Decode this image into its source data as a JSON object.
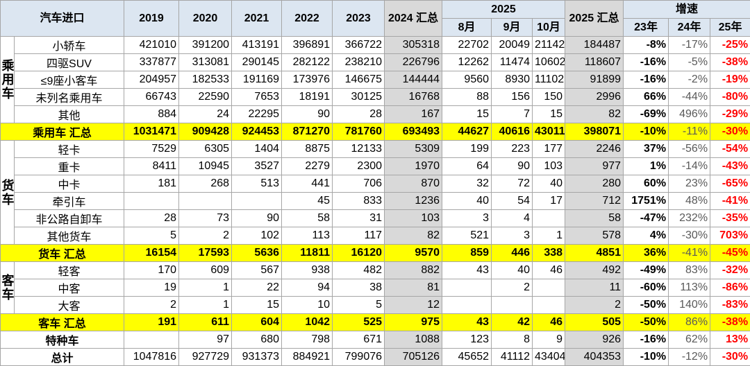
{
  "header": {
    "title": "汽车进口",
    "years": [
      "2019",
      "2020",
      "2021",
      "2022",
      "2023"
    ],
    "total_2024": "2024 汇总",
    "year_2025": "2025",
    "months": [
      "8月",
      "9月",
      "10月"
    ],
    "total_2025": "2025 汇总",
    "growth": "增速",
    "growth_cols": [
      "23年",
      "24年",
      "25年"
    ]
  },
  "sections": [
    {
      "group": "乘用车",
      "rows": [
        {
          "label": "小轿车",
          "values": [
            421010,
            391200,
            413191,
            396891,
            366722,
            305318,
            22702,
            20049,
            21142,
            184487
          ],
          "growth": [
            "-8%",
            "-17%",
            "-25%"
          ]
        },
        {
          "label": "四驱SUV",
          "values": [
            337877,
            313081,
            290145,
            282122,
            238210,
            226796,
            12262,
            11474,
            10602,
            118607
          ],
          "growth": [
            "-16%",
            "-5%",
            "-38%"
          ]
        },
        {
          "label": "≤9座小客车",
          "values": [
            204957,
            182533,
            191169,
            173976,
            146675,
            144444,
            9560,
            8930,
            11102,
            91899
          ],
          "growth": [
            "-16%",
            "-2%",
            "-19%"
          ]
        },
        {
          "label": "未列名乘用车",
          "values": [
            66743,
            22590,
            7653,
            18191,
            30125,
            16768,
            88,
            156,
            150,
            2996
          ],
          "growth": [
            "66%",
            "-44%",
            "-80%"
          ]
        },
        {
          "label": "其他",
          "values": [
            884,
            24,
            22295,
            90,
            28,
            167,
            15,
            7,
            15,
            82
          ],
          "growth": [
            "-69%",
            "496%",
            "-29%"
          ]
        }
      ],
      "total": {
        "label": "乘用车 汇总",
        "values": [
          1031471,
          909428,
          924453,
          871270,
          781760,
          693493,
          44627,
          40616,
          43011,
          398071
        ],
        "growth": [
          "-10%",
          "-11%",
          "-30%"
        ]
      }
    },
    {
      "group": "货车",
      "rows": [
        {
          "label": "轻卡",
          "values": [
            7529,
            6305,
            1404,
            8875,
            12133,
            5309,
            199,
            223,
            177,
            2246
          ],
          "growth": [
            "37%",
            "-56%",
            "-54%"
          ]
        },
        {
          "label": "重卡",
          "values": [
            8411,
            10945,
            3527,
            2279,
            2300,
            1970,
            64,
            90,
            103,
            977
          ],
          "growth": [
            "1%",
            "-14%",
            "-43%"
          ]
        },
        {
          "label": "中卡",
          "values": [
            181,
            268,
            513,
            441,
            706,
            870,
            32,
            72,
            40,
            280
          ],
          "growth": [
            "60%",
            "23%",
            "-65%"
          ]
        },
        {
          "label": "牵引车",
          "values": [
            null,
            null,
            null,
            45,
            833,
            1236,
            40,
            54,
            17,
            712
          ],
          "growth": [
            "1751%",
            "48%",
            "-41%"
          ]
        },
        {
          "label": "非公路自卸车",
          "values": [
            28,
            73,
            90,
            58,
            31,
            103,
            3,
            4,
            null,
            58
          ],
          "growth": [
            "-47%",
            "232%",
            "-35%"
          ]
        },
        {
          "label": "其他货车",
          "values": [
            5,
            2,
            102,
            113,
            117,
            82,
            521,
            3,
            1,
            578
          ],
          "growth": [
            "4%",
            "-30%",
            "703%"
          ]
        }
      ],
      "total": {
        "label": "货车 汇总",
        "values": [
          16154,
          17593,
          5636,
          11811,
          16120,
          9570,
          859,
          446,
          338,
          4851
        ],
        "growth": [
          "36%",
          "-41%",
          "-45%"
        ]
      }
    },
    {
      "group": "客车",
      "rows": [
        {
          "label": "轻客",
          "values": [
            170,
            609,
            567,
            938,
            482,
            882,
            43,
            40,
            46,
            492
          ],
          "growth": [
            "-49%",
            "83%",
            "-32%"
          ]
        },
        {
          "label": "中客",
          "values": [
            19,
            1,
            22,
            94,
            38,
            81,
            null,
            2,
            null,
            11
          ],
          "growth": [
            "-60%",
            "113%",
            "-86%"
          ]
        },
        {
          "label": "大客",
          "values": [
            2,
            1,
            15,
            10,
            5,
            12,
            null,
            null,
            null,
            2
          ],
          "growth": [
            "-50%",
            "140%",
            "-83%"
          ]
        }
      ],
      "total": {
        "label": "客车 汇总",
        "values": [
          191,
          611,
          604,
          1042,
          525,
          975,
          43,
          42,
          46,
          505
        ],
        "growth": [
          "-50%",
          "86%",
          "-38%"
        ]
      }
    }
  ],
  "special": {
    "label": "特种车",
    "values": [
      null,
      97,
      680,
      798,
      671,
      1088,
      123,
      8,
      9,
      926
    ],
    "growth": [
      "-16%",
      "62%",
      "13%"
    ]
  },
  "grand_total": {
    "label": "总计",
    "values": [
      1047816,
      927729,
      931373,
      884921,
      799076,
      705126,
      45652,
      41112,
      43404,
      404353
    ],
    "growth": [
      "-10%",
      "-12%",
      "-30%"
    ]
  }
}
